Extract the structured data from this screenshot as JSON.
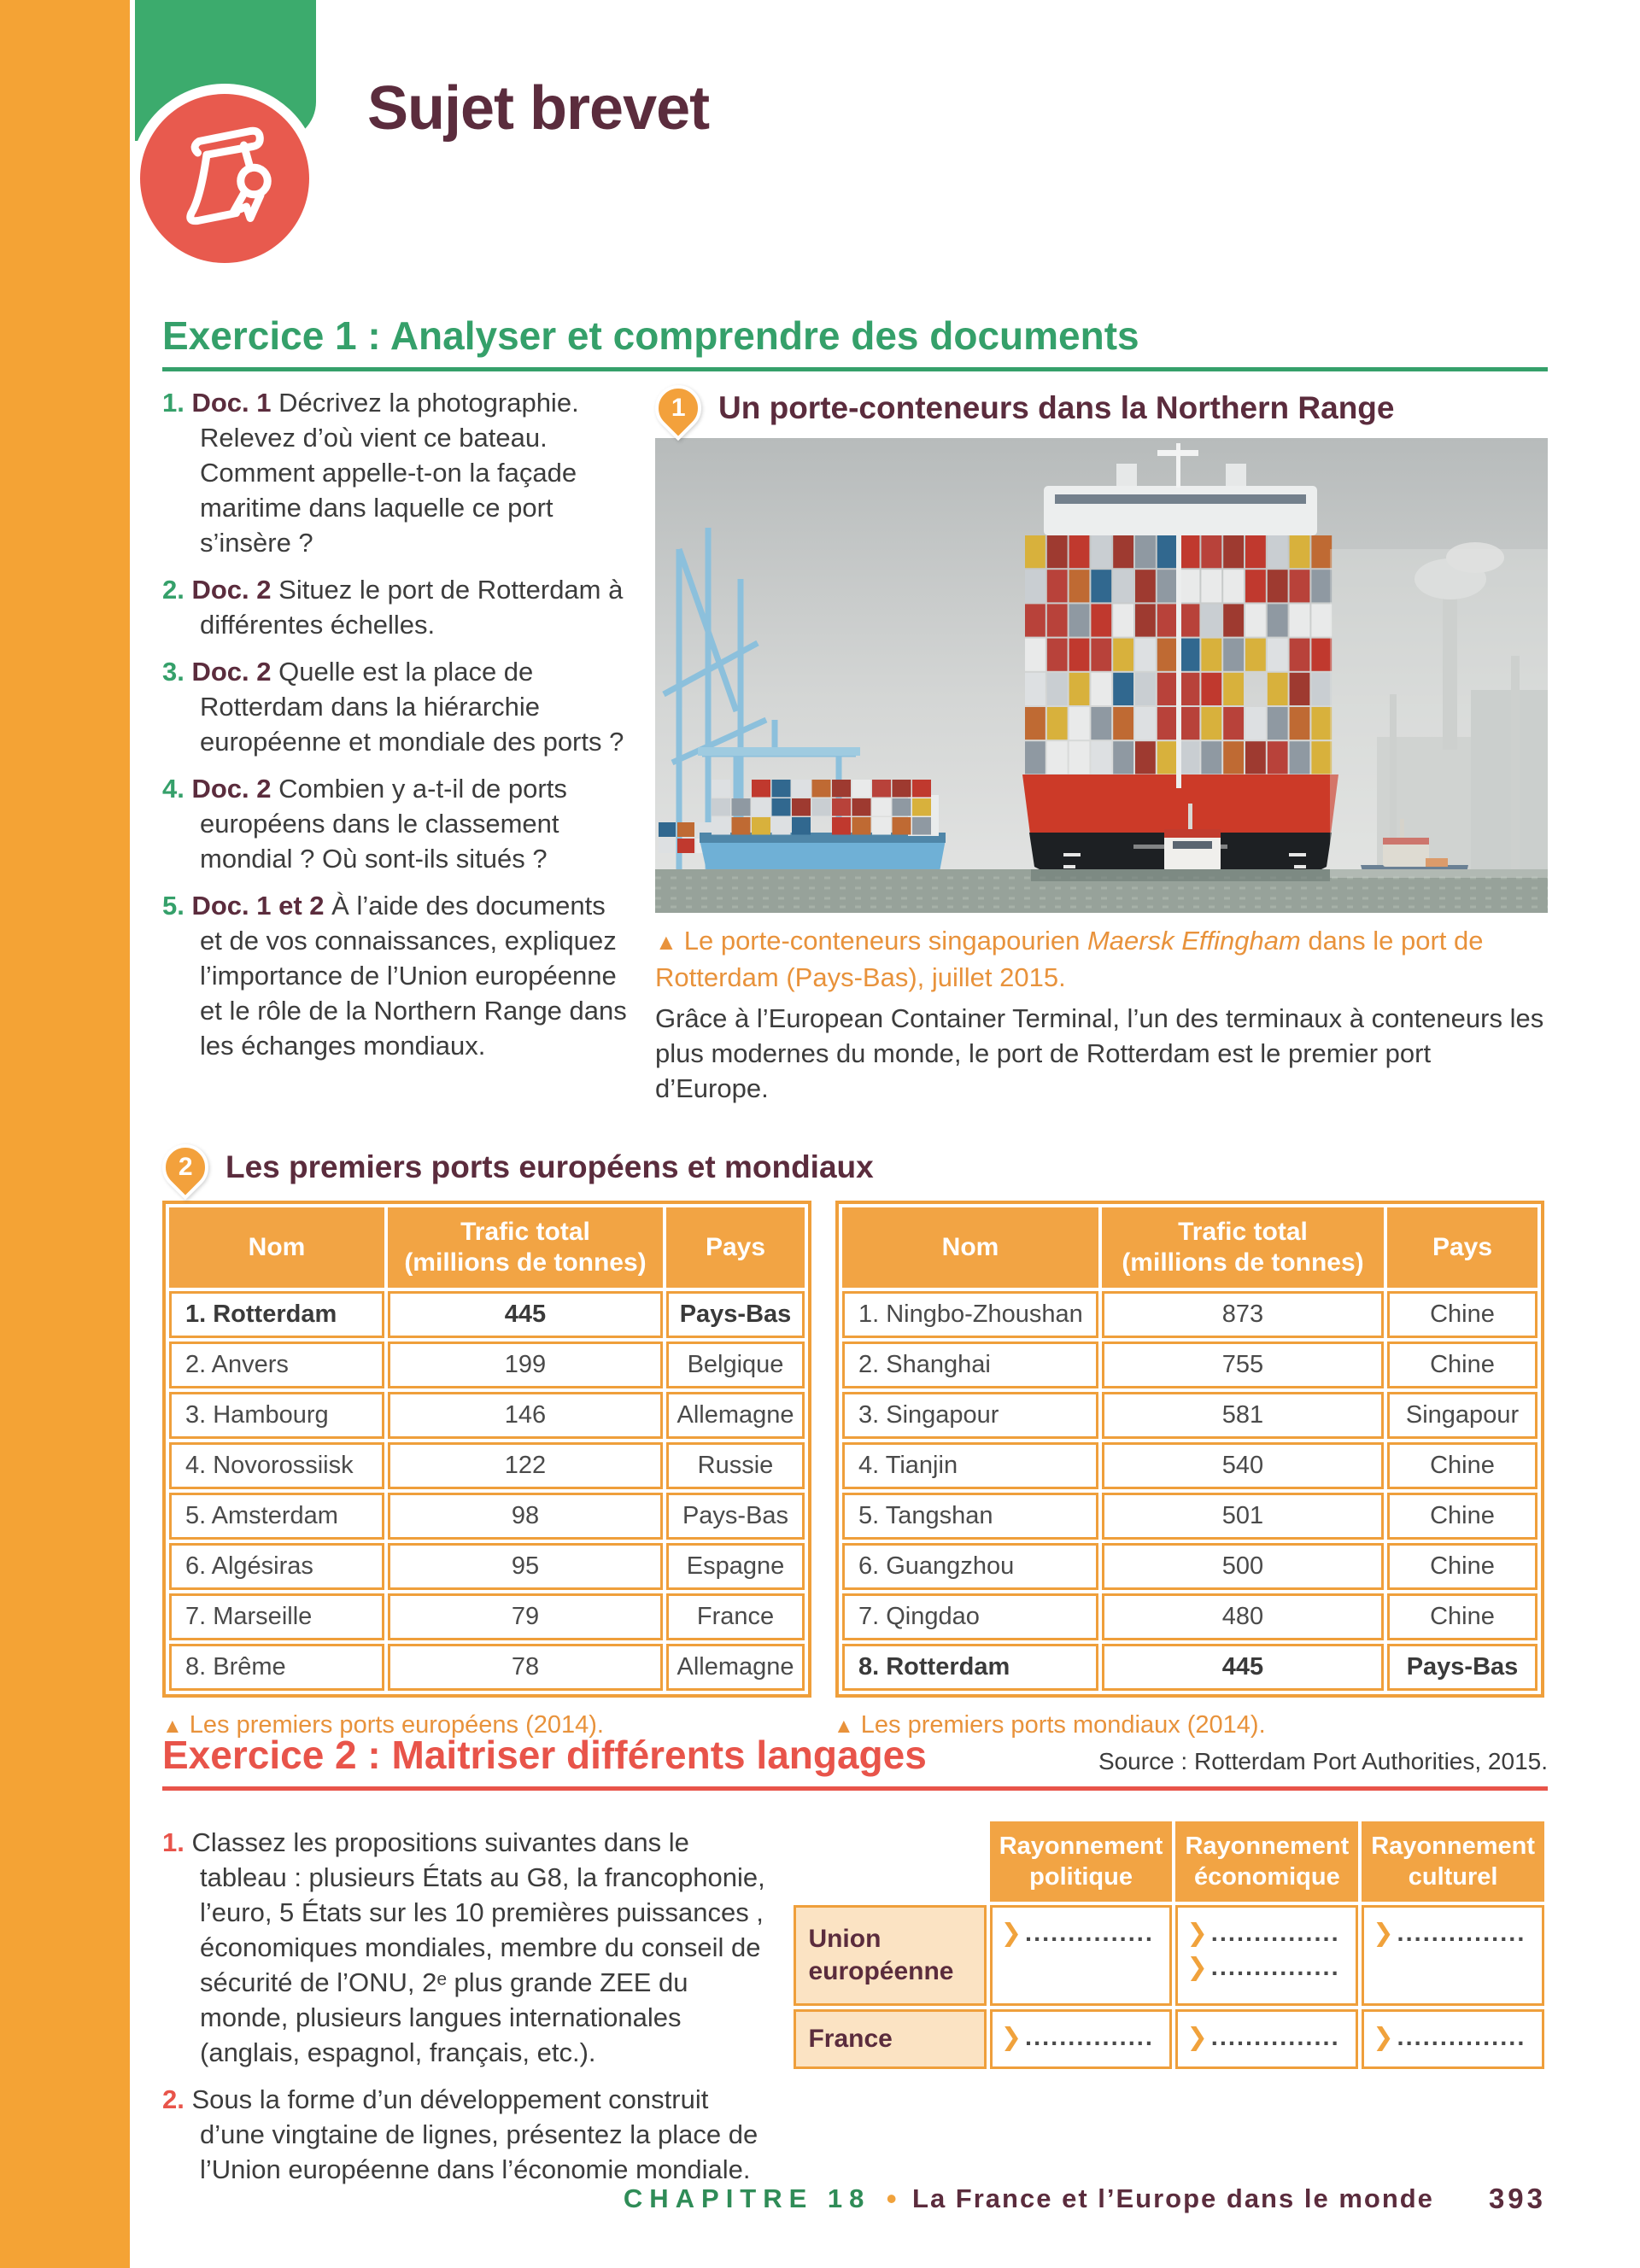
{
  "colors": {
    "strip_orange": "#f4a335",
    "table_orange": "#f2a444",
    "border_orange": "#ef9f3b",
    "peach": "#fbe3c3",
    "green_tab": "#3cab6d",
    "heading_green": "#35a06a",
    "maroon": "#5b2c3d",
    "heading_red": "#e8544a",
    "caption_orange": "#e8923b",
    "badge_red": "#e85a4e",
    "footer_green": "#2f8c57"
  },
  "ui": {
    "triangle": "▲",
    "chevron": "❯",
    "dots": "..............."
  },
  "header": {
    "title": "Sujet brevet"
  },
  "exercise1": {
    "heading": "Exercice 1 : Analyser et comprendre des documents",
    "questions": [
      {
        "num": "1.",
        "doc": "Doc. 1",
        "text": "Décrivez la photographie. Relevez d’où vient ce bateau. Comment appelle-t-on la façade maritime dans laquelle ce port s’insère ?"
      },
      {
        "num": "2.",
        "doc": "Doc. 2",
        "text": "Situez le port de Rotterdam à différentes échelles."
      },
      {
        "num": "3.",
        "doc": "Doc. 2",
        "text": "Quelle est la place de Rotterdam dans la hiérarchie européenne et mondiale des ports ?"
      },
      {
        "num": "4.",
        "doc": "Doc. 2",
        "text": "Combien y a-t-il de ports européens dans le classement mondial ? Où sont-ils situés ?"
      },
      {
        "num": "5.",
        "doc": "Doc. 1 et 2",
        "text": "À l’aide des documents et de vos connaissances, expliquez l’importance de l’Union européenne et le rôle de la Northern Range dans les échanges mondiaux."
      }
    ]
  },
  "doc1": {
    "badge": "1",
    "title": "Un porte-conteneurs dans la Northern Range",
    "caption_before": "Le porte-conteneurs singapourien ",
    "caption_ship": "Maersk Effingham",
    "caption_after": " dans le port de Rotterdam (Pays-Bas), juillet 2015.",
    "body": "Grâce à l’European Container Terminal, l’un des terminaux à conteneurs les plus modernes du monde, le port de Rotterdam est le premier port d’Europe."
  },
  "doc2": {
    "badge": "2",
    "title": "Les premiers ports européens et mondiaux",
    "col_name": "Nom",
    "col_traffic_l1": "Trafic total",
    "col_traffic_l2": "(millions de tonnes)",
    "col_country": "Pays",
    "europe": {
      "rows": [
        {
          "name": "1. Rotterdam",
          "traffic": "445",
          "country": "Pays-Bas"
        },
        {
          "name": "2. Anvers",
          "traffic": "199",
          "country": "Belgique"
        },
        {
          "name": "3. Hambourg",
          "traffic": "146",
          "country": "Allemagne"
        },
        {
          "name": "4. Novorossiisk",
          "traffic": "122",
          "country": "Russie"
        },
        {
          "name": "5. Amsterdam",
          "traffic": "98",
          "country": "Pays-Bas"
        },
        {
          "name": "6. Algésiras",
          "traffic": "95",
          "country": "Espagne"
        },
        {
          "name": "7. Marseille",
          "traffic": "79",
          "country": "France"
        },
        {
          "name": "8. Brême",
          "traffic": "78",
          "country": "Allemagne"
        }
      ],
      "caption": "Les premiers ports européens (2014)."
    },
    "world": {
      "rows": [
        {
          "name": "1. Ningbo-Zhoushan",
          "traffic": "873",
          "country": "Chine"
        },
        {
          "name": "2. Shanghai",
          "traffic": "755",
          "country": "Chine"
        },
        {
          "name": "3. Singapour",
          "traffic": "581",
          "country": "Singapour"
        },
        {
          "name": "4. Tianjin",
          "traffic": "540",
          "country": "Chine"
        },
        {
          "name": "5. Tangshan",
          "traffic": "501",
          "country": "Chine"
        },
        {
          "name": "6. Guangzhou",
          "traffic": "500",
          "country": "Chine"
        },
        {
          "name": "7. Qingdao",
          "traffic": "480",
          "country": "Chine"
        },
        {
          "name": "8. Rotterdam",
          "traffic": "445",
          "country": "Pays-Bas"
        }
      ],
      "caption": "Les premiers ports mondiaux (2014)."
    },
    "source": "Source : Rotterdam Port Authorities, 2015."
  },
  "exercise2": {
    "heading": "Exercice 2 : Maitriser différents langages",
    "questions": [
      {
        "num": "1.",
        "text": "Classez les propositions suivantes dans le tableau : plusieurs États au G8, la francophonie, l’euro, 5 États sur les 10 premières puissances , économiques mondiales, membre du conseil de sécurité de l’ONU, 2ᵉ plus grande ZEE du monde, plusieurs langues internationales (anglais, espagnol, français, etc.)."
      },
      {
        "num": "2.",
        "text": "Sous la forme d’un développement construit d’une vingtaine de lignes, présentez la place de l’Union européenne dans l’économie mondiale."
      }
    ],
    "table": {
      "col_headers": [
        "Rayonnement politique",
        "Rayonnement économique",
        "Rayonnement culturel"
      ],
      "row_headers": [
        "Union européenne",
        "France"
      ]
    }
  },
  "footer": {
    "chapter": "CHAPITRE 18",
    "separator": "•",
    "title": "La France et l’Europe dans le monde",
    "page": "393"
  }
}
